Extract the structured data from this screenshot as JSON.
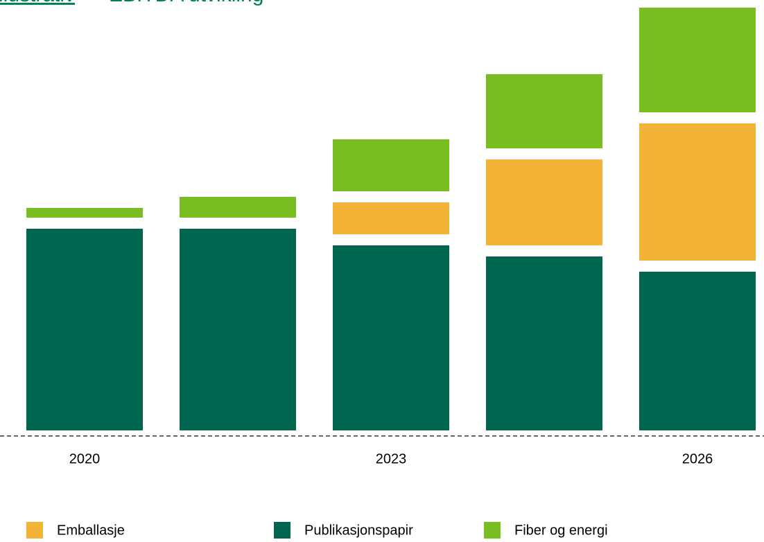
{
  "chart_data": {
    "type": "stacked_bar",
    "title_link": "llustrativ",
    "title": "EBITDA utvikling",
    "categories": [
      "2020",
      null,
      "2023",
      null,
      "2026"
    ],
    "series": [
      {
        "name": "Emballasje",
        "color": "#f2b337",
        "values": [
          0,
          0,
          46,
          124,
          198
        ]
      },
      {
        "name": "Publikasjonspapir",
        "color": "#00664f",
        "values": [
          291,
          291,
          267,
          251,
          229
        ]
      },
      {
        "name": "Fiber og energi",
        "color": "#78be20",
        "values": [
          14,
          30,
          75,
          107,
          151
        ]
      }
    ]
  }
}
